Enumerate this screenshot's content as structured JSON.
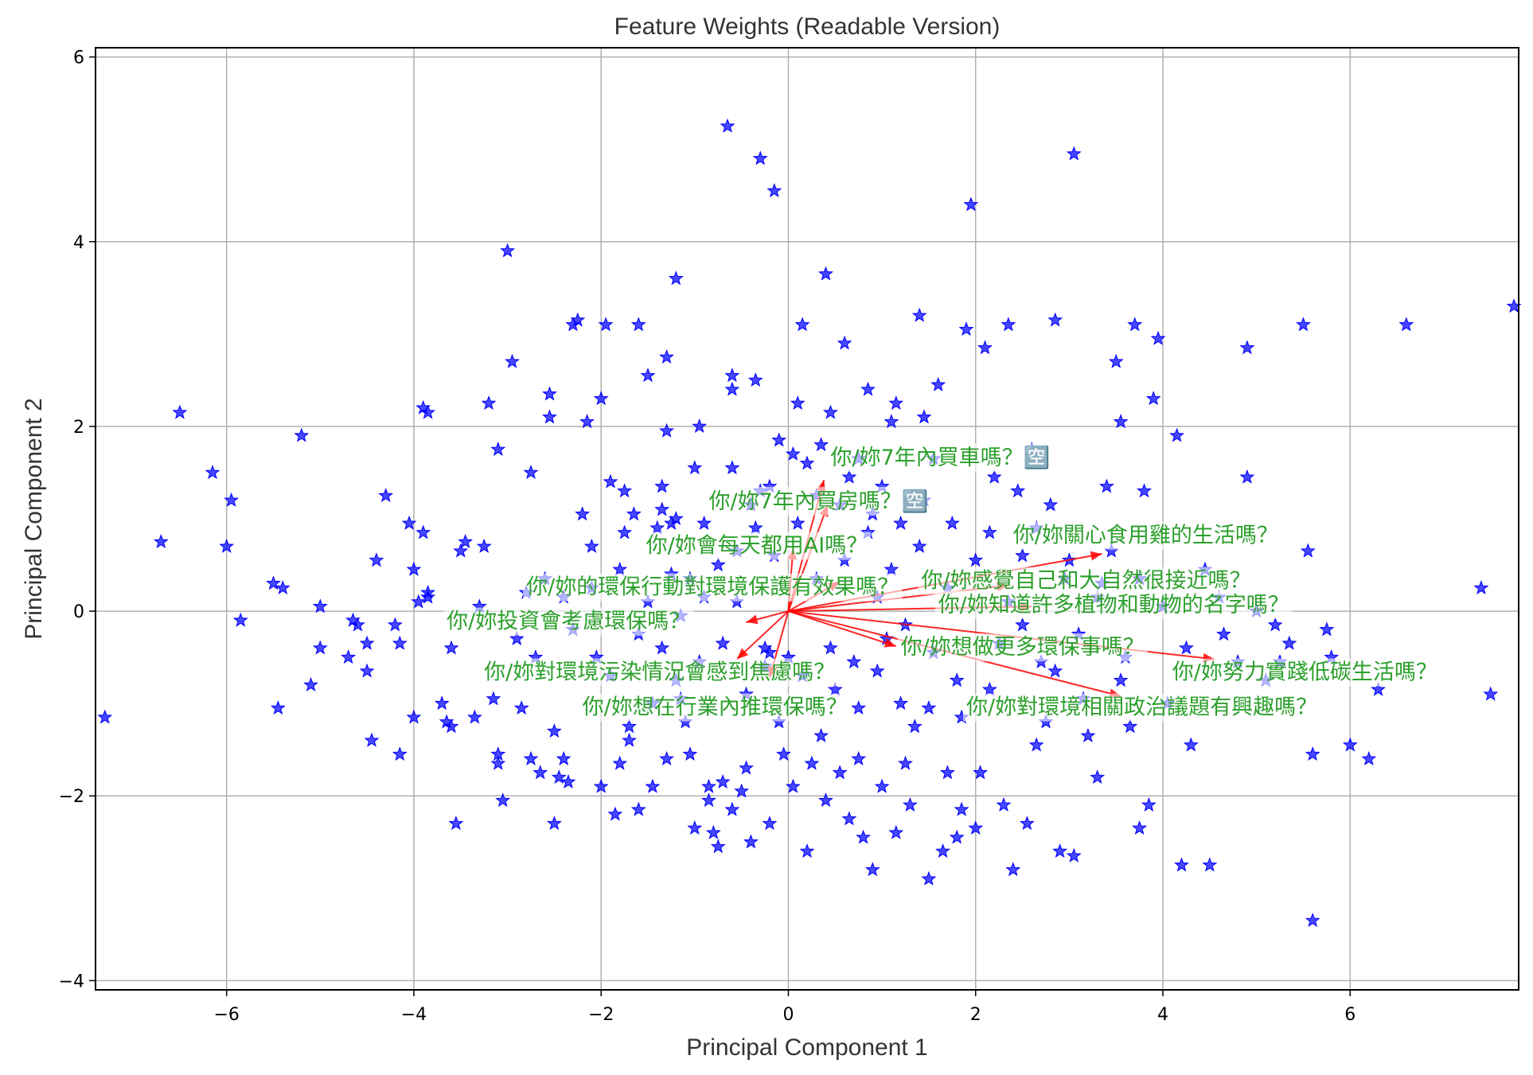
{
  "chart_data": {
    "type": "scatter",
    "title": "Feature Weights (Readable Version)",
    "xlabel": "Principal Component 1",
    "ylabel": "Principal Component 2",
    "xlim": [
      -7.4,
      7.8
    ],
    "ylim": [
      -4.1,
      6.1
    ],
    "xticks": [
      -6,
      -4,
      -2,
      0,
      2,
      4,
      6
    ],
    "yticks": [
      -4,
      -2,
      0,
      2,
      4,
      6
    ],
    "xtick_labels": [
      "−6",
      "−4",
      "−2",
      "0",
      "2",
      "4",
      "6"
    ],
    "ytick_labels": [
      "−4",
      "−2",
      "0",
      "2",
      "4",
      "6"
    ],
    "grid": true,
    "marker": "star",
    "colors": {
      "points": "#0000ff",
      "arrows": "#ff0000",
      "labels": "#2ca02c",
      "grid": "#b0b0b0"
    },
    "points": [
      [
        -7.3,
        -1.15
      ],
      [
        -6.7,
        0.75
      ],
      [
        -6.5,
        2.15
      ],
      [
        -6.15,
        1.5
      ],
      [
        -6.0,
        0.7
      ],
      [
        -5.95,
        1.2
      ],
      [
        -5.85,
        -0.1
      ],
      [
        -5.5,
        0.3
      ],
      [
        -5.45,
        -1.05
      ],
      [
        -5.4,
        0.25
      ],
      [
        -5.2,
        1.9
      ],
      [
        -5.1,
        -0.8
      ],
      [
        -5.0,
        -0.4
      ],
      [
        -5.0,
        0.05
      ],
      [
        -4.7,
        -0.5
      ],
      [
        -4.65,
        -0.1
      ],
      [
        -4.6,
        -0.15
      ],
      [
        -4.5,
        -0.35
      ],
      [
        -4.5,
        -0.65
      ],
      [
        -4.45,
        -1.4
      ],
      [
        -4.4,
        0.55
      ],
      [
        -4.3,
        1.25
      ],
      [
        -4.2,
        -0.15
      ],
      [
        -4.15,
        -0.35
      ],
      [
        -4.15,
        -1.55
      ],
      [
        -4.05,
        0.95
      ],
      [
        -4.0,
        -1.15
      ],
      [
        -4.0,
        0.45
      ],
      [
        -3.95,
        0.1
      ],
      [
        -3.9,
        0.85
      ],
      [
        -3.9,
        2.2
      ],
      [
        -3.85,
        2.15
      ],
      [
        -3.85,
        0.15
      ],
      [
        -3.85,
        0.2
      ],
      [
        -3.7,
        -1.0
      ],
      [
        -3.65,
        -1.2
      ],
      [
        -3.6,
        -1.25
      ],
      [
        -3.55,
        -2.3
      ],
      [
        -3.5,
        0.65
      ],
      [
        -3.45,
        0.75
      ],
      [
        -3.35,
        -1.15
      ],
      [
        -3.25,
        0.7
      ],
      [
        -3.2,
        2.25
      ],
      [
        -3.15,
        -0.95
      ],
      [
        -3.1,
        1.75
      ],
      [
        -3.1,
        -1.55
      ],
      [
        -3.1,
        -1.65
      ],
      [
        -3.05,
        -2.05
      ],
      [
        -3.0,
        3.9
      ],
      [
        -2.95,
        2.7
      ],
      [
        -2.85,
        -1.05
      ],
      [
        -2.8,
        0.2
      ],
      [
        -2.75,
        1.5
      ],
      [
        -2.75,
        -1.6
      ],
      [
        -2.65,
        -1.75
      ],
      [
        -2.6,
        0.35
      ],
      [
        -2.55,
        2.1
      ],
      [
        -2.55,
        2.35
      ],
      [
        -2.5,
        -1.3
      ],
      [
        -2.5,
        -2.3
      ],
      [
        -2.45,
        -1.8
      ],
      [
        -2.4,
        -1.6
      ],
      [
        -2.35,
        -1.85
      ],
      [
        -2.3,
        3.1
      ],
      [
        -2.25,
        3.15
      ],
      [
        -2.2,
        1.05
      ],
      [
        -2.15,
        2.05
      ],
      [
        -2.1,
        0.7
      ],
      [
        -2.05,
        -0.5
      ],
      [
        -2.0,
        2.3
      ],
      [
        -2.0,
        -1.9
      ],
      [
        -1.95,
        3.1
      ],
      [
        -1.9,
        1.4
      ],
      [
        -1.85,
        -2.2
      ],
      [
        -1.8,
        -1.65
      ],
      [
        -1.75,
        1.3
      ],
      [
        -1.75,
        0.85
      ],
      [
        -1.7,
        -1.4
      ],
      [
        -1.7,
        -1.25
      ],
      [
        -1.65,
        1.05
      ],
      [
        -1.6,
        3.1
      ],
      [
        -1.6,
        -2.15
      ],
      [
        -1.5,
        2.55
      ],
      [
        -1.45,
        -1.0
      ],
      [
        -1.45,
        -1.9
      ],
      [
        -1.4,
        0.9
      ],
      [
        -1.35,
        1.1
      ],
      [
        -1.35,
        1.35
      ],
      [
        -1.3,
        -1.6
      ],
      [
        -1.3,
        2.75
      ],
      [
        -1.3,
        1.95
      ],
      [
        -1.25,
        0.95
      ],
      [
        -1.25,
        0.4
      ],
      [
        -1.2,
        1.0
      ],
      [
        -1.2,
        3.6
      ],
      [
        -1.15,
        -0.05
      ],
      [
        -1.15,
        -0.95
      ],
      [
        -1.1,
        -1.2
      ],
      [
        -1.05,
        -1.55
      ],
      [
        -1.0,
        1.55
      ],
      [
        -0.95,
        2.0
      ],
      [
        -0.9,
        0.95
      ],
      [
        -0.9,
        0.15
      ],
      [
        -0.85,
        -1.9
      ],
      [
        -0.85,
        -2.05
      ],
      [
        -0.8,
        -2.4
      ],
      [
        -0.75,
        -2.55
      ],
      [
        -0.7,
        -1.85
      ],
      [
        -0.65,
        5.25
      ],
      [
        -0.6,
        2.55
      ],
      [
        -0.6,
        2.4
      ],
      [
        -0.55,
        0.65
      ],
      [
        -0.5,
        -1.95
      ],
      [
        -0.45,
        -1.7
      ],
      [
        -0.4,
        -2.5
      ],
      [
        -0.35,
        2.5
      ],
      [
        -0.3,
        4.9
      ],
      [
        -0.3,
        1.3
      ],
      [
        -0.25,
        -0.4
      ],
      [
        -0.2,
        -0.45
      ],
      [
        -0.15,
        4.55
      ],
      [
        -0.1,
        1.85
      ],
      [
        -0.1,
        -1.2
      ],
      [
        -0.05,
        -1.55
      ],
      [
        0.0,
        -0.5
      ],
      [
        0.05,
        1.7
      ],
      [
        0.05,
        -1.9
      ],
      [
        0.1,
        2.25
      ],
      [
        0.15,
        3.1
      ],
      [
        0.2,
        1.6
      ],
      [
        0.25,
        -1.65
      ],
      [
        0.3,
        1.25
      ],
      [
        0.35,
        -1.35
      ],
      [
        0.4,
        3.65
      ],
      [
        0.45,
        2.15
      ],
      [
        0.5,
        -0.85
      ],
      [
        0.55,
        -1.75
      ],
      [
        0.6,
        2.9
      ],
      [
        0.65,
        1.45
      ],
      [
        0.7,
        -0.55
      ],
      [
        0.75,
        -1.6
      ],
      [
        0.8,
        -2.45
      ],
      [
        0.85,
        2.4
      ],
      [
        0.9,
        1.05
      ],
      [
        0.95,
        0.15
      ],
      [
        1.0,
        -1.9
      ],
      [
        1.05,
        -0.3
      ],
      [
        1.1,
        2.05
      ],
      [
        1.15,
        2.25
      ],
      [
        1.2,
        -1.0
      ],
      [
        1.25,
        -1.65
      ],
      [
        1.3,
        -2.1
      ],
      [
        1.35,
        -1.25
      ],
      [
        1.4,
        3.2
      ],
      [
        1.45,
        2.1
      ],
      [
        1.5,
        -1.05
      ],
      [
        1.55,
        1.65
      ],
      [
        1.6,
        2.45
      ],
      [
        1.65,
        -2.6
      ],
      [
        1.7,
        -1.75
      ],
      [
        1.75,
        0.95
      ],
      [
        1.8,
        -0.75
      ],
      [
        1.85,
        -2.15
      ],
      [
        1.9,
        3.05
      ],
      [
        1.95,
        4.4
      ],
      [
        2.0,
        -2.35
      ],
      [
        2.05,
        -1.75
      ],
      [
        2.1,
        2.85
      ],
      [
        2.15,
        0.85
      ],
      [
        2.2,
        1.45
      ],
      [
        2.25,
        -0.35
      ],
      [
        2.3,
        -2.1
      ],
      [
        2.35,
        3.1
      ],
      [
        2.4,
        -2.8
      ],
      [
        2.45,
        1.3
      ],
      [
        2.5,
        0.6
      ],
      [
        2.55,
        -2.3
      ],
      [
        2.6,
        1.75
      ],
      [
        2.65,
        -1.45
      ],
      [
        2.7,
        -0.55
      ],
      [
        2.75,
        -1.2
      ],
      [
        2.8,
        1.15
      ],
      [
        2.85,
        3.15
      ],
      [
        2.9,
        -2.6
      ],
      [
        2.95,
        0.35
      ],
      [
        3.05,
        4.95
      ],
      [
        3.05,
        -2.65
      ],
      [
        3.1,
        -0.25
      ],
      [
        3.2,
        -1.35
      ],
      [
        3.3,
        -1.8
      ],
      [
        3.35,
        0.3
      ],
      [
        3.4,
        1.35
      ],
      [
        3.45,
        0.65
      ],
      [
        3.5,
        2.7
      ],
      [
        3.55,
        2.05
      ],
      [
        3.6,
        -0.5
      ],
      [
        3.65,
        -1.25
      ],
      [
        3.7,
        3.1
      ],
      [
        3.75,
        -2.35
      ],
      [
        3.8,
        1.3
      ],
      [
        3.85,
        -2.1
      ],
      [
        3.9,
        2.3
      ],
      [
        3.95,
        2.95
      ],
      [
        4.05,
        -1.0
      ],
      [
        4.15,
        1.9
      ],
      [
        4.2,
        -2.75
      ],
      [
        4.3,
        -1.45
      ],
      [
        4.45,
        0.45
      ],
      [
        4.5,
        -2.75
      ],
      [
        4.65,
        -0.25
      ],
      [
        4.8,
        -0.55
      ],
      [
        4.9,
        2.85
      ],
      [
        4.9,
        1.45
      ],
      [
        5.1,
        -0.75
      ],
      [
        5.2,
        -0.15
      ],
      [
        5.25,
        -0.55
      ],
      [
        5.5,
        3.1
      ],
      [
        5.55,
        0.65
      ],
      [
        5.6,
        -1.55
      ],
      [
        5.6,
        -3.35
      ],
      [
        5.75,
        -0.2
      ],
      [
        5.8,
        -0.5
      ],
      [
        6.0,
        -1.45
      ],
      [
        6.2,
        -1.6
      ],
      [
        6.3,
        -0.85
      ],
      [
        6.6,
        3.1
      ],
      [
        7.4,
        0.25
      ],
      [
        7.5,
        -0.9
      ],
      [
        7.75,
        3.3
      ],
      [
        -3.6,
        -0.4
      ],
      [
        -3.3,
        0.05
      ],
      [
        -2.9,
        -0.3
      ],
      [
        -2.7,
        -0.5
      ],
      [
        -2.4,
        0.15
      ],
      [
        -2.3,
        -0.2
      ],
      [
        -2.1,
        0.25
      ],
      [
        -1.9,
        -0.7
      ],
      [
        -1.8,
        0.45
      ],
      [
        -1.6,
        -0.25
      ],
      [
        -1.5,
        0.1
      ],
      [
        -1.35,
        -0.4
      ],
      [
        -1.2,
        -0.75
      ],
      [
        -1.05,
        0.35
      ],
      [
        -0.95,
        -0.55
      ],
      [
        -0.75,
        0.5
      ],
      [
        -0.7,
        -0.35
      ],
      [
        -0.55,
        0.1
      ],
      [
        -0.45,
        -0.9
      ],
      [
        -0.35,
        0.9
      ],
      [
        -0.25,
        -0.6
      ],
      [
        -0.15,
        0.6
      ],
      [
        0.15,
        -0.7
      ],
      [
        0.3,
        0.35
      ],
      [
        0.45,
        -0.4
      ],
      [
        0.6,
        0.55
      ],
      [
        0.75,
        -1.05
      ],
      [
        0.85,
        0.85
      ],
      [
        0.95,
        -0.65
      ],
      [
        1.1,
        0.45
      ],
      [
        1.25,
        -0.15
      ],
      [
        1.4,
        0.7
      ],
      [
        1.55,
        -0.45
      ],
      [
        1.7,
        0.25
      ],
      [
        1.85,
        -1.15
      ],
      [
        2.0,
        0.55
      ],
      [
        2.15,
        -0.85
      ],
      [
        2.35,
        0.1
      ],
      [
        2.5,
        -0.15
      ],
      [
        2.65,
        0.9
      ],
      [
        2.85,
        -0.65
      ],
      [
        3.0,
        0.55
      ],
      [
        3.15,
        -0.95
      ],
      [
        3.3,
        0.15
      ],
      [
        3.55,
        -0.75
      ],
      [
        3.75,
        0.35
      ],
      [
        4.0,
        0.05
      ],
      [
        4.25,
        -0.4
      ],
      [
        4.6,
        0.15
      ],
      [
        5.0,
        0.0
      ],
      [
        5.35,
        -0.35
      ],
      [
        -0.6,
        1.55
      ],
      [
        -0.4,
        1.15
      ],
      [
        -0.2,
        1.35
      ],
      [
        0.1,
        0.95
      ],
      [
        0.35,
        1.8
      ],
      [
        0.55,
        1.15
      ],
      [
        0.75,
        1.65
      ],
      [
        1.0,
        1.35
      ],
      [
        1.2,
        0.95
      ],
      [
        1.45,
        1.2
      ],
      [
        -1.0,
        -2.35
      ],
      [
        -0.6,
        -2.15
      ],
      [
        -0.2,
        -2.3
      ],
      [
        0.2,
        -2.6
      ],
      [
        0.4,
        -2.05
      ],
      [
        0.65,
        -2.25
      ],
      [
        0.9,
        -2.8
      ],
      [
        1.15,
        -2.4
      ],
      [
        1.5,
        -2.9
      ],
      [
        1.8,
        -2.45
      ]
    ],
    "vectors": [
      {
        "dx": 0.38,
        "dy": 1.42,
        "label": "你/妳7年內買車嗎？🈳"
      },
      {
        "dx": 0.42,
        "dy": 1.15,
        "label": "你/妳7年內買房嗎？🈳"
      },
      {
        "dx": 3.35,
        "dy": 0.62,
        "label": "你/妳關心食用雞的生活嗎？"
      },
      {
        "dx": 0.05,
        "dy": 0.68,
        "label": "你/妳會每天都用AI嗎？"
      },
      {
        "dx": 2.35,
        "dy": 0.28,
        "label": "你/妳感覺自己和大自然很接近嗎？"
      },
      {
        "dx": 0.55,
        "dy": 0.32,
        "label": "你/妳的環保行動對環境保護有效果嗎？"
      },
      {
        "dx": 2.6,
        "dy": 0.05,
        "label": "你/妳知道許多植物和動物的名字嗎？"
      },
      {
        "dx": -0.45,
        "dy": -0.12,
        "label": "你/妳投資會考慮環保嗎？"
      },
      {
        "dx": 1.15,
        "dy": -0.38,
        "label": "你/妳想做更多環保事嗎？"
      },
      {
        "dx": 4.55,
        "dy": -0.52,
        "label": "你/妳努力實踐低碳生活嗎？"
      },
      {
        "dx": -0.55,
        "dy": -0.52,
        "label": "你/妳對環境污染情況會感到焦慮嗎？"
      },
      {
        "dx": -0.2,
        "dy": -0.72,
        "label": "你/妳想在行業內推環保嗎？"
      },
      {
        "dx": 3.55,
        "dy": -0.92,
        "label": "你/妳對環境相關政治議題有興趣嗎？"
      }
    ],
    "label_positions": [
      [
        0.45,
        1.67
      ],
      [
        -0.85,
        1.2
      ],
      [
        2.4,
        0.83
      ],
      [
        -1.52,
        0.72
      ],
      [
        1.42,
        0.34
      ],
      [
        -2.8,
        0.27
      ],
      [
        1.6,
        0.08
      ],
      [
        -3.65,
        -0.1
      ],
      [
        1.2,
        -0.38
      ],
      [
        4.1,
        -0.65
      ],
      [
        -3.25,
        -0.65
      ],
      [
        -2.2,
        -1.03
      ],
      [
        1.9,
        -1.03
      ]
    ]
  }
}
